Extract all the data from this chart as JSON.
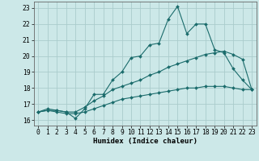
{
  "title": "",
  "xlabel": "Humidex (Indice chaleur)",
  "xlim": [
    -0.5,
    23.5
  ],
  "ylim": [
    15.65,
    23.4
  ],
  "bg_color": "#cce8e8",
  "grid_color": "#aacccc",
  "line_color": "#1a6b6b",
  "xticks": [
    0,
    1,
    2,
    3,
    4,
    5,
    6,
    7,
    8,
    9,
    10,
    11,
    12,
    13,
    14,
    15,
    16,
    17,
    18,
    19,
    20,
    21,
    22,
    23
  ],
  "yticks": [
    16,
    17,
    18,
    19,
    20,
    21,
    22,
    23
  ],
  "line1_x": [
    0,
    1,
    2,
    3,
    4,
    5,
    6,
    7,
    8,
    9,
    10,
    11,
    12,
    13,
    14,
    15,
    16,
    17,
    18,
    19,
    20,
    21,
    22,
    23
  ],
  "line1_y": [
    16.5,
    16.7,
    16.6,
    16.5,
    16.1,
    16.7,
    17.6,
    17.6,
    18.5,
    19.0,
    19.9,
    20.0,
    20.7,
    20.8,
    22.3,
    23.1,
    21.4,
    22.0,
    22.0,
    20.4,
    20.2,
    19.2,
    18.5,
    17.9
  ],
  "line2_x": [
    0,
    1,
    2,
    3,
    4,
    5,
    6,
    7,
    8,
    9,
    10,
    11,
    12,
    13,
    14,
    15,
    16,
    17,
    18,
    19,
    20,
    21,
    22,
    23
  ],
  "line2_y": [
    16.5,
    16.6,
    16.6,
    16.5,
    16.5,
    16.8,
    17.2,
    17.5,
    17.9,
    18.1,
    18.3,
    18.5,
    18.8,
    19.0,
    19.3,
    19.5,
    19.7,
    19.9,
    20.1,
    20.2,
    20.3,
    20.1,
    19.8,
    17.9
  ],
  "line3_x": [
    0,
    1,
    2,
    3,
    4,
    5,
    6,
    7,
    8,
    9,
    10,
    11,
    12,
    13,
    14,
    15,
    16,
    17,
    18,
    19,
    20,
    21,
    22,
    23
  ],
  "line3_y": [
    16.5,
    16.6,
    16.5,
    16.4,
    16.4,
    16.5,
    16.7,
    16.9,
    17.1,
    17.3,
    17.4,
    17.5,
    17.6,
    17.7,
    17.8,
    17.9,
    18.0,
    18.0,
    18.1,
    18.1,
    18.1,
    18.0,
    17.9,
    17.9
  ],
  "xlabel_fontsize": 6.5,
  "tick_fontsize": 5.8
}
